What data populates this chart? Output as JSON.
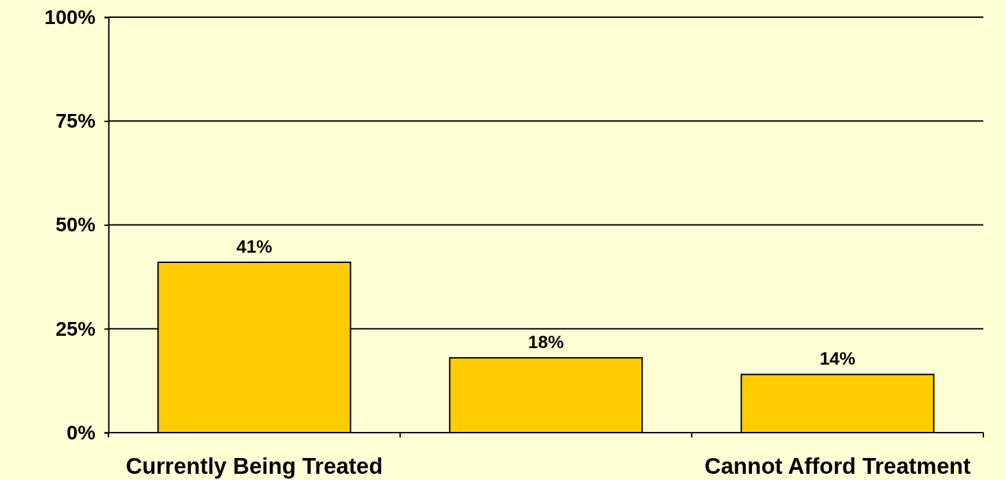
{
  "chart_data": {
    "type": "bar",
    "categories": [
      "Currently Being Treated",
      null,
      "Cannot Afford Treatment"
    ],
    "values": [
      41,
      18,
      14
    ],
    "color": "#ffcc00",
    "value_labels": [
      "41%",
      "18%",
      "14%"
    ],
    "ylim": [
      0,
      100
    ],
    "yticks": [
      {
        "value": 0,
        "label": "0%"
      },
      {
        "value": 25,
        "label": "25%"
      },
      {
        "value": 50,
        "label": "50%"
      },
      {
        "value": 75,
        "label": "75%"
      },
      {
        "value": 100,
        "label": "100%"
      }
    ],
    "grid": "y"
  }
}
